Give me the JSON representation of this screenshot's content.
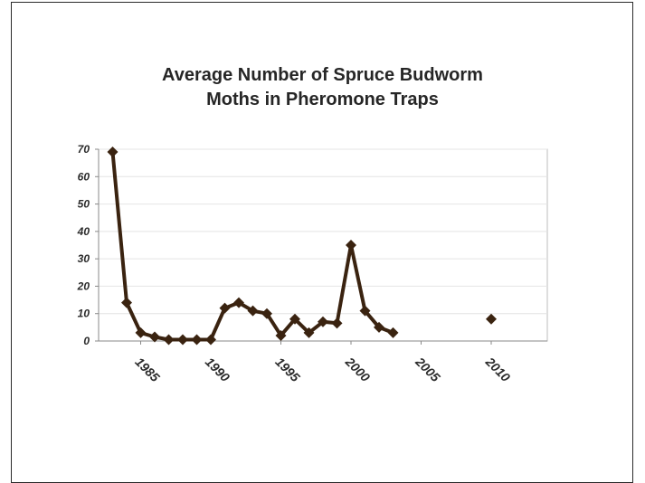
{
  "chart_data": {
    "type": "line",
    "title_lines": [
      "Average Number of Spruce Budworm",
      "Moths in Pheromone Traps"
    ],
    "xlabel": "",
    "ylabel": "",
    "xlim": [
      1982,
      2014
    ],
    "ylim": [
      0,
      70
    ],
    "y_ticks": [
      0,
      10,
      20,
      30,
      40,
      50,
      60,
      70
    ],
    "x_ticks": [
      1985,
      1990,
      1995,
      2000,
      2005,
      2010
    ],
    "grid": true,
    "series": [
      {
        "color": "#3a2310",
        "points": [
          [
            1983,
            69
          ],
          [
            1984,
            14
          ],
          [
            1985,
            3
          ],
          [
            1986,
            1.5
          ],
          [
            1987,
            0.5
          ],
          [
            1988,
            0.5
          ],
          [
            1989,
            0.5
          ],
          [
            1990,
            0.5
          ],
          [
            1991,
            12
          ],
          [
            1992,
            14
          ],
          [
            1993,
            11
          ],
          [
            1994,
            10
          ],
          [
            1995,
            2
          ],
          [
            1996,
            8
          ],
          [
            1997,
            3
          ],
          [
            1998,
            7
          ],
          [
            1999,
            6.5
          ],
          [
            2000,
            35
          ],
          [
            2001,
            11
          ],
          [
            2002,
            5
          ],
          [
            2003,
            3
          ]
        ]
      },
      {
        "color": "#3a2310",
        "points": [
          [
            2010,
            8
          ]
        ]
      }
    ]
  }
}
